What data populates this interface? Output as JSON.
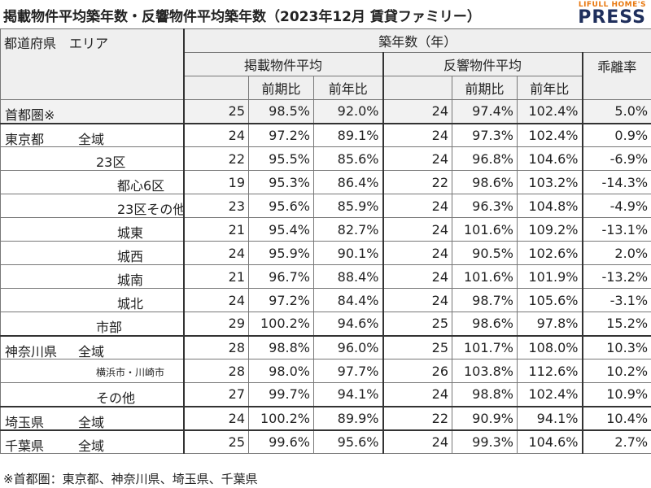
{
  "header": {
    "title": "掲載物件平均築年数・反響物件平均築年数（2023年12月 賃貸ファミリー）",
    "logo_sub": "LIFULL HOME'S",
    "logo_main": "PRESS"
  },
  "table": {
    "corner": "都道府県　エリア",
    "top_header": "築年数（年）",
    "group_headers": [
      "掲載物件平均",
      "反響物件平均",
      "乖離率"
    ],
    "sub_headers": [
      "前期比",
      "前年比",
      "前期比",
      "前年比"
    ],
    "rows": [
      {
        "pref": "首都圏※",
        "values": [
          25,
          "98.5%",
          "92.0%",
          24,
          "97.4%",
          "102.4%",
          "5.0%"
        ]
      },
      {
        "pref": "東京都",
        "area": "全域",
        "values": [
          24,
          "97.2%",
          "89.1%",
          24,
          "97.3%",
          "102.4%",
          "0.9%"
        ]
      },
      {
        "area": "23区",
        "values": [
          22,
          "95.5%",
          "85.6%",
          24,
          "96.8%",
          "104.6%",
          "-6.9%"
        ]
      },
      {
        "area": "都心6区",
        "values": [
          19,
          "95.3%",
          "86.4%",
          22,
          "98.6%",
          "103.2%",
          "-14.3%"
        ]
      },
      {
        "area": "23区その他",
        "values": [
          23,
          "95.6%",
          "85.9%",
          24,
          "96.3%",
          "104.8%",
          "-4.9%"
        ]
      },
      {
        "area": "城東",
        "values": [
          21,
          "95.4%",
          "82.7%",
          24,
          "101.6%",
          "109.2%",
          "-13.1%"
        ]
      },
      {
        "area": "城西",
        "values": [
          24,
          "95.9%",
          "90.1%",
          24,
          "90.5%",
          "102.6%",
          "2.0%"
        ]
      },
      {
        "area": "城南",
        "values": [
          21,
          "96.7%",
          "88.4%",
          24,
          "101.6%",
          "101.9%",
          "-13.2%"
        ]
      },
      {
        "area": "城北",
        "values": [
          24,
          "97.2%",
          "84.4%",
          24,
          "98.7%",
          "105.6%",
          "-3.1%"
        ]
      },
      {
        "area": "市部",
        "values": [
          29,
          "100.2%",
          "94.6%",
          25,
          "98.6%",
          "97.8%",
          "15.2%"
        ]
      },
      {
        "pref": "神奈川県",
        "area": "全域",
        "values": [
          28,
          "98.8%",
          "96.0%",
          25,
          "101.7%",
          "108.0%",
          "10.3%"
        ]
      },
      {
        "area": "横浜市・川崎市",
        "values": [
          28,
          "98.0%",
          "97.7%",
          26,
          "103.8%",
          "112.6%",
          "10.2%"
        ]
      },
      {
        "area": "その他",
        "values": [
          27,
          "99.7%",
          "94.1%",
          24,
          "98.8%",
          "102.4%",
          "10.9%"
        ]
      },
      {
        "pref": "埼玉県",
        "area": "全域",
        "values": [
          24,
          "100.2%",
          "89.9%",
          22,
          "90.9%",
          "94.1%",
          "10.4%"
        ]
      },
      {
        "pref": "千葉県",
        "area": "全域",
        "values": [
          25,
          "99.6%",
          "95.6%",
          24,
          "99.3%",
          "104.6%",
          "2.7%"
        ]
      }
    ]
  },
  "footnote": "※首都圏：東京都、神奈川県、埼玉県、千葉県"
}
